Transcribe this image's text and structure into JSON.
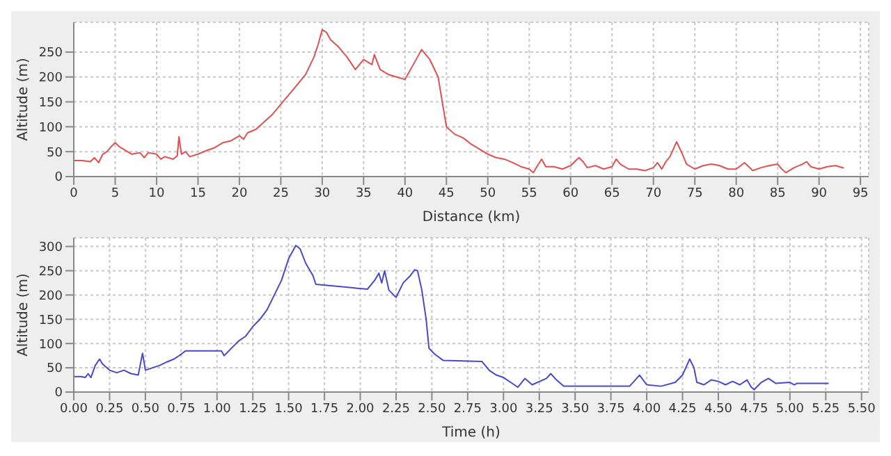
{
  "chart_data": [
    {
      "type": "line",
      "xlabel": "Distance (km)",
      "ylabel": "Altitude (m)",
      "xlim": [
        0,
        96
      ],
      "xticks": [
        0,
        5,
        10,
        15,
        20,
        25,
        30,
        35,
        40,
        45,
        50,
        55,
        60,
        65,
        70,
        75,
        80,
        85,
        90,
        95
      ],
      "ylim": [
        0,
        310
      ],
      "yticks": [
        0,
        50,
        100,
        150,
        200,
        250
      ],
      "grid": true,
      "marker": "none",
      "x": [
        0,
        1,
        2,
        2.5,
        3,
        3.5,
        4,
        4.5,
        5,
        5.5,
        6,
        7,
        8,
        8.5,
        9,
        10,
        10.5,
        11,
        12,
        12.5,
        12.7,
        13,
        13.5,
        14,
        15,
        16,
        17,
        18,
        19,
        20,
        20.5,
        21,
        22,
        23,
        24,
        25,
        26,
        27,
        28,
        29,
        29.5,
        30,
        30.5,
        31,
        32,
        33,
        34,
        35,
        36,
        36.3,
        37,
        38,
        39,
        40,
        41,
        42,
        43,
        44,
        44.5,
        45,
        46,
        47,
        48,
        49,
        50,
        51,
        52,
        53,
        54,
        55,
        55.5,
        56,
        56.5,
        57,
        58,
        59,
        60,
        61,
        61.5,
        62,
        63,
        64,
        65,
        65.5,
        66,
        67,
        68,
        69,
        70,
        70.5,
        71,
        71.5,
        72,
        72.8,
        73.5,
        74,
        75,
        76,
        77,
        78,
        79,
        80,
        81,
        82,
        83,
        84,
        85,
        85.5,
        86,
        87,
        88,
        88.5,
        89,
        90,
        91,
        92,
        93
      ],
      "series": [
        {
          "color": "#e05050",
          "values": [
            32,
            32,
            30,
            38,
            28,
            45,
            50,
            60,
            68,
            60,
            55,
            45,
            48,
            38,
            48,
            45,
            35,
            40,
            35,
            42,
            80,
            45,
            50,
            40,
            45,
            52,
            58,
            68,
            72,
            82,
            75,
            88,
            95,
            110,
            125,
            145,
            165,
            185,
            205,
            240,
            265,
            295,
            290,
            275,
            260,
            240,
            215,
            235,
            225,
            245,
            215,
            205,
            200,
            195,
            225,
            255,
            235,
            200,
            150,
            100,
            85,
            78,
            65,
            55,
            45,
            38,
            35,
            28,
            20,
            15,
            8,
            22,
            35,
            20,
            20,
            15,
            22,
            38,
            30,
            18,
            22,
            15,
            20,
            35,
            25,
            15,
            15,
            12,
            18,
            28,
            15,
            30,
            40,
            70,
            45,
            25,
            15,
            22,
            25,
            22,
            15,
            15,
            28,
            12,
            18,
            22,
            25,
            15,
            8,
            18,
            25,
            30,
            20,
            15,
            20,
            22,
            17
          ]
        }
      ]
    },
    {
      "type": "line",
      "xlabel": "Time (h)",
      "ylabel": "Altitude (m)",
      "xlim": [
        0,
        5.55
      ],
      "xticks": [
        {
          "value": 0,
          "label": "0.00"
        },
        {
          "value": 0.25,
          "label": "0.25"
        },
        {
          "value": 0.5,
          "label": "0.50"
        },
        {
          "value": 0.75,
          "label": "0.75"
        },
        {
          "value": 1,
          "label": "1.00"
        },
        {
          "value": 1.25,
          "label": "1.25"
        },
        {
          "value": 1.5,
          "label": "1.50"
        },
        {
          "value": 1.75,
          "label": "1.75"
        },
        {
          "value": 2,
          "label": "2.00"
        },
        {
          "value": 2.25,
          "label": "2.25"
        },
        {
          "value": 2.5,
          "label": "2.50"
        },
        {
          "value": 2.75,
          "label": "2.75"
        },
        {
          "value": 3,
          "label": "3.00"
        },
        {
          "value": 3.25,
          "label": "3.25"
        },
        {
          "value": 3.5,
          "label": "3.50"
        },
        {
          "value": 3.75,
          "label": "3.75"
        },
        {
          "value": 4,
          "label": "4.00"
        },
        {
          "value": 4.25,
          "label": "4.25"
        },
        {
          "value": 4.5,
          "label": "4.50"
        },
        {
          "value": 4.75,
          "label": "4.75"
        },
        {
          "value": 5,
          "label": "5.00"
        },
        {
          "value": 5.25,
          "label": "5.25"
        },
        {
          "value": 5.5,
          "label": "5.50"
        }
      ],
      "ylim": [
        0,
        318
      ],
      "yticks": [
        0,
        50,
        100,
        150,
        200,
        250,
        300
      ],
      "grid": true,
      "marker": "none",
      "x": [
        0,
        0.05,
        0.08,
        0.1,
        0.12,
        0.15,
        0.18,
        0.2,
        0.25,
        0.3,
        0.35,
        0.4,
        0.45,
        0.48,
        0.5,
        0.55,
        0.6,
        0.65,
        0.7,
        0.75,
        0.78,
        1.03,
        1.05,
        1.1,
        1.15,
        1.2,
        1.25,
        1.3,
        1.35,
        1.4,
        1.45,
        1.5,
        1.55,
        1.58,
        1.62,
        1.67,
        1.69,
        2.05,
        2.1,
        2.13,
        2.15,
        2.17,
        2.2,
        2.25,
        2.3,
        2.35,
        2.38,
        2.4,
        2.43,
        2.46,
        2.48,
        2.52,
        2.58,
        2.85,
        2.9,
        2.95,
        3,
        3.05,
        3.1,
        3.15,
        3.2,
        3.3,
        3.33,
        3.37,
        3.42,
        3.88,
        3.92,
        3.95,
        4,
        4.1,
        4.2,
        4.25,
        4.3,
        4.33,
        4.35,
        4.4,
        4.45,
        4.5,
        4.55,
        4.6,
        4.65,
        4.7,
        4.73,
        4.75,
        4.8,
        4.85,
        4.9,
        5,
        5.03,
        5.05,
        5.27
      ],
      "series": [
        {
          "color": "#4848cc",
          "values": [
            32,
            32,
            30,
            38,
            30,
            55,
            68,
            58,
            45,
            40,
            45,
            38,
            35,
            80,
            45,
            50,
            55,
            62,
            68,
            78,
            85,
            85,
            75,
            90,
            105,
            115,
            135,
            150,
            170,
            200,
            230,
            275,
            302,
            295,
            265,
            240,
            222,
            212,
            230,
            245,
            225,
            250,
            210,
            195,
            225,
            240,
            252,
            250,
            210,
            150,
            90,
            78,
            65,
            63,
            45,
            35,
            30,
            20,
            10,
            28,
            15,
            28,
            38,
            25,
            12,
            12,
            25,
            35,
            15,
            12,
            20,
            35,
            68,
            50,
            20,
            15,
            25,
            22,
            15,
            22,
            15,
            25,
            10,
            5,
            20,
            28,
            18,
            20,
            15,
            18,
            18
          ]
        }
      ]
    }
  ]
}
